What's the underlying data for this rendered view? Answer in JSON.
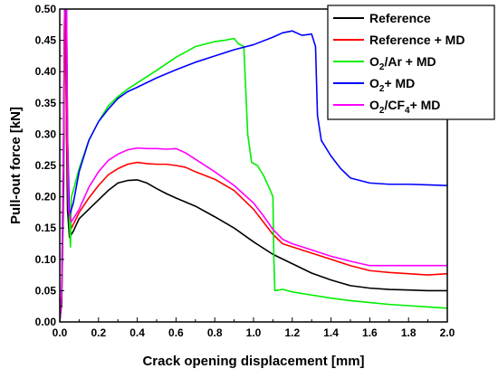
{
  "chart_data": {
    "type": "line",
    "xlabel": "Crack opening displacement [mm]",
    "ylabel": "Pull-out force [kN]",
    "xlim": [
      0,
      2.0
    ],
    "ylim": [
      0,
      0.5
    ],
    "xticks": [
      "0.0",
      "0.2",
      "0.4",
      "0.6",
      "0.8",
      "1.0",
      "1.2",
      "1.4",
      "1.6",
      "1.8",
      "2.0"
    ],
    "yticks": [
      "0.00",
      "0.05",
      "0.10",
      "0.15",
      "0.20",
      "0.25",
      "0.30",
      "0.35",
      "0.40",
      "0.45",
      "0.50"
    ],
    "grid": false,
    "legend_position": "top-right",
    "series": [
      {
        "name": "Reference",
        "legend": [
          {
            "t": "Reference",
            "sub": false
          }
        ],
        "color": "#000000",
        "points": [
          [
            0,
            0
          ],
          [
            0.01,
            0.03
          ],
          [
            0.02,
            0.22
          ],
          [
            0.025,
            0.5
          ],
          [
            0.03,
            0.5
          ],
          [
            0.035,
            0.3
          ],
          [
            0.04,
            0.18
          ],
          [
            0.05,
            0.135
          ],
          [
            0.07,
            0.145
          ],
          [
            0.1,
            0.165
          ],
          [
            0.15,
            0.18
          ],
          [
            0.2,
            0.195
          ],
          [
            0.25,
            0.21
          ],
          [
            0.3,
            0.222
          ],
          [
            0.35,
            0.226
          ],
          [
            0.4,
            0.227
          ],
          [
            0.45,
            0.222
          ],
          [
            0.5,
            0.213
          ],
          [
            0.55,
            0.205
          ],
          [
            0.6,
            0.198
          ],
          [
            0.7,
            0.185
          ],
          [
            0.8,
            0.168
          ],
          [
            0.9,
            0.15
          ],
          [
            1.0,
            0.128
          ],
          [
            1.1,
            0.108
          ],
          [
            1.2,
            0.093
          ],
          [
            1.3,
            0.078
          ],
          [
            1.4,
            0.067
          ],
          [
            1.5,
            0.058
          ],
          [
            1.6,
            0.054
          ],
          [
            1.7,
            0.052
          ],
          [
            1.8,
            0.051
          ],
          [
            1.9,
            0.05
          ],
          [
            2.0,
            0.05
          ]
        ]
      },
      {
        "name": "Reference + MD",
        "legend": [
          {
            "t": "Reference + MD",
            "sub": false
          }
        ],
        "color": "#ff0000",
        "points": [
          [
            0,
            0
          ],
          [
            0.01,
            0.04
          ],
          [
            0.02,
            0.3
          ],
          [
            0.025,
            0.5
          ],
          [
            0.03,
            0.5
          ],
          [
            0.035,
            0.3
          ],
          [
            0.045,
            0.18
          ],
          [
            0.06,
            0.15
          ],
          [
            0.08,
            0.162
          ],
          [
            0.1,
            0.175
          ],
          [
            0.15,
            0.198
          ],
          [
            0.2,
            0.218
          ],
          [
            0.25,
            0.235
          ],
          [
            0.3,
            0.245
          ],
          [
            0.35,
            0.252
          ],
          [
            0.4,
            0.255
          ],
          [
            0.45,
            0.253
          ],
          [
            0.5,
            0.252
          ],
          [
            0.55,
            0.252
          ],
          [
            0.6,
            0.25
          ],
          [
            0.65,
            0.247
          ],
          [
            0.7,
            0.24
          ],
          [
            0.8,
            0.228
          ],
          [
            0.9,
            0.21
          ],
          [
            1.0,
            0.18
          ],
          [
            1.05,
            0.16
          ],
          [
            1.1,
            0.14
          ],
          [
            1.15,
            0.125
          ],
          [
            1.2,
            0.12
          ],
          [
            1.3,
            0.11
          ],
          [
            1.4,
            0.1
          ],
          [
            1.5,
            0.09
          ],
          [
            1.6,
            0.082
          ],
          [
            1.7,
            0.079
          ],
          [
            1.8,
            0.077
          ],
          [
            1.9,
            0.075
          ],
          [
            2.0,
            0.077
          ]
        ]
      },
      {
        "name": "O2/Ar + MD",
        "legend": [
          {
            "t": "O",
            "sub": false
          },
          {
            "t": "2",
            "sub": true
          },
          {
            "t": "/Ar + MD",
            "sub": false
          }
        ],
        "color": "#00ee00",
        "points": [
          [
            0,
            0
          ],
          [
            0.01,
            0.05
          ],
          [
            0.02,
            0.3
          ],
          [
            0.025,
            0.5
          ],
          [
            0.035,
            0.5
          ],
          [
            0.04,
            0.3
          ],
          [
            0.045,
            0.2
          ],
          [
            0.055,
            0.12
          ],
          [
            0.06,
            0.2
          ],
          [
            0.07,
            0.21
          ],
          [
            0.1,
            0.245
          ],
          [
            0.15,
            0.29
          ],
          [
            0.2,
            0.32
          ],
          [
            0.25,
            0.345
          ],
          [
            0.3,
            0.36
          ],
          [
            0.35,
            0.372
          ],
          [
            0.4,
            0.382
          ],
          [
            0.5,
            0.402
          ],
          [
            0.6,
            0.423
          ],
          [
            0.7,
            0.44
          ],
          [
            0.8,
            0.448
          ],
          [
            0.85,
            0.45
          ],
          [
            0.9,
            0.453
          ],
          [
            0.92,
            0.445
          ],
          [
            0.95,
            0.44
          ],
          [
            0.97,
            0.3
          ],
          [
            0.99,
            0.255
          ],
          [
            1.02,
            0.25
          ],
          [
            1.05,
            0.235
          ],
          [
            1.08,
            0.215
          ],
          [
            1.1,
            0.2
          ],
          [
            1.105,
            0.1
          ],
          [
            1.11,
            0.05
          ],
          [
            1.15,
            0.052
          ],
          [
            1.2,
            0.048
          ],
          [
            1.3,
            0.043
          ],
          [
            1.4,
            0.038
          ],
          [
            1.5,
            0.034
          ],
          [
            1.6,
            0.031
          ],
          [
            1.7,
            0.028
          ],
          [
            1.8,
            0.026
          ],
          [
            1.9,
            0.024
          ],
          [
            2.0,
            0.022
          ]
        ]
      },
      {
        "name": "O2+ MD",
        "legend": [
          {
            "t": "O",
            "sub": false
          },
          {
            "t": "2",
            "sub": true
          },
          {
            "t": "+ MD",
            "sub": false
          }
        ],
        "color": "#0000ff",
        "points": [
          [
            0,
            0
          ],
          [
            0.01,
            0.05
          ],
          [
            0.02,
            0.3
          ],
          [
            0.025,
            0.5
          ],
          [
            0.035,
            0.5
          ],
          [
            0.04,
            0.3
          ],
          [
            0.05,
            0.17
          ],
          [
            0.07,
            0.19
          ],
          [
            0.1,
            0.24
          ],
          [
            0.15,
            0.29
          ],
          [
            0.2,
            0.32
          ],
          [
            0.25,
            0.34
          ],
          [
            0.3,
            0.357
          ],
          [
            0.35,
            0.368
          ],
          [
            0.4,
            0.375
          ],
          [
            0.5,
            0.39
          ],
          [
            0.6,
            0.403
          ],
          [
            0.7,
            0.415
          ],
          [
            0.8,
            0.425
          ],
          [
            0.9,
            0.435
          ],
          [
            1.0,
            0.443
          ],
          [
            1.1,
            0.455
          ],
          [
            1.15,
            0.462
          ],
          [
            1.2,
            0.465
          ],
          [
            1.25,
            0.458
          ],
          [
            1.3,
            0.46
          ],
          [
            1.32,
            0.44
          ],
          [
            1.33,
            0.33
          ],
          [
            1.35,
            0.29
          ],
          [
            1.4,
            0.265
          ],
          [
            1.45,
            0.245
          ],
          [
            1.5,
            0.23
          ],
          [
            1.6,
            0.222
          ],
          [
            1.7,
            0.22
          ],
          [
            1.8,
            0.22
          ],
          [
            1.9,
            0.219
          ],
          [
            2.0,
            0.218
          ]
        ]
      },
      {
        "name": "O2/CF4+ MD",
        "legend": [
          {
            "t": "O",
            "sub": false
          },
          {
            "t": "2",
            "sub": true
          },
          {
            "t": "/CF",
            "sub": false
          },
          {
            "t": "4",
            "sub": true
          },
          {
            "t": "+ MD",
            "sub": false
          }
        ],
        "color": "#ff00ff",
        "points": [
          [
            0,
            0
          ],
          [
            0.01,
            0.05
          ],
          [
            0.02,
            0.3
          ],
          [
            0.025,
            0.5
          ],
          [
            0.035,
            0.5
          ],
          [
            0.04,
            0.3
          ],
          [
            0.045,
            0.18
          ],
          [
            0.06,
            0.16
          ],
          [
            0.1,
            0.18
          ],
          [
            0.15,
            0.215
          ],
          [
            0.2,
            0.24
          ],
          [
            0.25,
            0.258
          ],
          [
            0.3,
            0.268
          ],
          [
            0.35,
            0.275
          ],
          [
            0.4,
            0.278
          ],
          [
            0.45,
            0.277
          ],
          [
            0.5,
            0.277
          ],
          [
            0.55,
            0.276
          ],
          [
            0.6,
            0.277
          ],
          [
            0.65,
            0.27
          ],
          [
            0.7,
            0.26
          ],
          [
            0.8,
            0.24
          ],
          [
            0.9,
            0.218
          ],
          [
            1.0,
            0.19
          ],
          [
            1.05,
            0.17
          ],
          [
            1.1,
            0.148
          ],
          [
            1.15,
            0.132
          ],
          [
            1.2,
            0.125
          ],
          [
            1.3,
            0.115
          ],
          [
            1.4,
            0.105
          ],
          [
            1.5,
            0.097
          ],
          [
            1.6,
            0.09
          ],
          [
            1.7,
            0.09
          ],
          [
            1.8,
            0.09
          ],
          [
            1.9,
            0.09
          ],
          [
            2.0,
            0.09
          ]
        ]
      }
    ]
  }
}
